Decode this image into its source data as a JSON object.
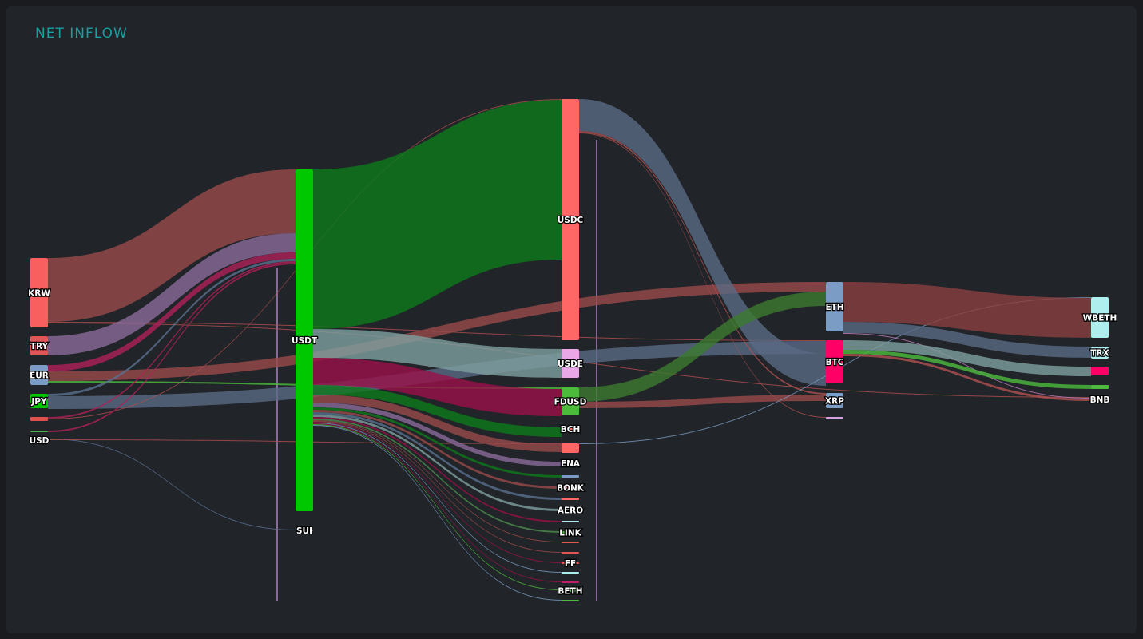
{
  "title": "NET INFLOW",
  "chart_data": {
    "type": "sankey",
    "title": "NET INFLOW",
    "nodes": [
      {
        "name": "KRW",
        "color": "#f86060"
      },
      {
        "name": "TRY",
        "color": "#e05555"
      },
      {
        "name": "EUR",
        "color": "#7b9cc4"
      },
      {
        "name": "JPY",
        "color": "#00c800"
      },
      {
        "name": "",
        "color": "#e05050"
      },
      {
        "name": "",
        "color": "#4caf50"
      },
      {
        "name": "USD",
        "color": "#7b9cc4"
      },
      {
        "name": "USDT",
        "color": "#00c800"
      },
      {
        "name": "SUI",
        "color": "#7b9cc4"
      },
      {
        "name": "USDC",
        "color": "#ff6666"
      },
      {
        "name": "USDE",
        "color": "#e8a8e8"
      },
      {
        "name": "FDUSD",
        "color": "#4cbb3c"
      },
      {
        "name": "BCH",
        "color": "#ff6666"
      },
      {
        "name": "",
        "color": "#ff6666"
      },
      {
        "name": "ENA",
        "color": "#b088c8"
      },
      {
        "name": "",
        "color": "#7b9cc4"
      },
      {
        "name": "BONK",
        "color": "#ff6666"
      },
      {
        "name": "",
        "color": "#ff6666"
      },
      {
        "name": "AERO",
        "color": "#9ab0b0"
      },
      {
        "name": "",
        "color": "#aeeeee"
      },
      {
        "name": "LINK",
        "color": "#4cbb3c"
      },
      {
        "name": "",
        "color": "#e05555"
      },
      {
        "name": "",
        "color": "#e05555"
      },
      {
        "name": "FF",
        "color": "#e05555"
      },
      {
        "name": "",
        "color": "#aeeeee"
      },
      {
        "name": "",
        "color": "#c0206a"
      },
      {
        "name": "BETH",
        "color": "#4cbb3c"
      },
      {
        "name": "",
        "color": "#4cbb3c"
      },
      {
        "name": "ETH",
        "color": "#7b9cc4"
      },
      {
        "name": "BTC",
        "color": "#ff0066"
      },
      {
        "name": "XRP",
        "color": "#7b9cc4"
      },
      {
        "name": "",
        "color": "#d8a0d8"
      },
      {
        "name": "WBETH",
        "color": "#aeeeee"
      },
      {
        "name": "TRX",
        "color": "#aeeeee"
      },
      {
        "name": "",
        "color": "#ff0066"
      },
      {
        "name": "",
        "color": "#4cbb3c"
      },
      {
        "name": "BNB",
        "color": "#00c800"
      }
    ],
    "links": [
      [
        0,
        7,
        80,
        "#9a4a4a"
      ],
      [
        0,
        29,
        1,
        "#b05050"
      ],
      [
        0,
        36,
        1,
        "#b05050"
      ],
      [
        1,
        7,
        24,
        "#8a6a9a"
      ],
      [
        2,
        7,
        8,
        "#b0205a"
      ],
      [
        2,
        28,
        12,
        "#9a4a4a"
      ],
      [
        2,
        11,
        2,
        "#4cbb3c"
      ],
      [
        3,
        7,
        3,
        "#5a7090"
      ],
      [
        3,
        29,
        16,
        "#5a6a85"
      ],
      [
        4,
        7,
        2,
        "#b0205a"
      ],
      [
        4,
        9,
        1,
        "#b05050"
      ],
      [
        5,
        7,
        2,
        "#b0205a"
      ],
      [
        6,
        8,
        1,
        "#5a7090"
      ],
      [
        6,
        13,
        1,
        "#b05050"
      ],
      [
        7,
        9,
        200,
        "#0e7a1c"
      ],
      [
        7,
        10,
        36,
        "#7fa0a0"
      ],
      [
        7,
        11,
        34,
        "#9a1048"
      ],
      [
        7,
        12,
        12,
        "#0e7a1c"
      ],
      [
        7,
        13,
        10,
        "#9a4a4a"
      ],
      [
        7,
        14,
        6,
        "#8a6a9a"
      ],
      [
        7,
        15,
        3,
        "#0e7a1c"
      ],
      [
        7,
        16,
        3,
        "#9a4a4a"
      ],
      [
        7,
        17,
        3,
        "#5a7090"
      ],
      [
        7,
        18,
        3,
        "#7fa0a0"
      ],
      [
        7,
        19,
        2,
        "#9a1048"
      ],
      [
        7,
        20,
        2,
        "#4c8c4c"
      ],
      [
        7,
        21,
        1,
        "#9a4a4a"
      ],
      [
        7,
        22,
        1,
        "#9a4a4a"
      ],
      [
        7,
        23,
        1,
        "#9a1048"
      ],
      [
        7,
        24,
        1,
        "#7b9cc4"
      ],
      [
        7,
        25,
        1,
        "#9a1048"
      ],
      [
        7,
        26,
        1,
        "#4cbb3c"
      ],
      [
        7,
        27,
        1,
        "#7b9cc4"
      ],
      [
        9,
        29,
        40,
        "#5a6a85"
      ],
      [
        9,
        30,
        2,
        "#b05050"
      ],
      [
        9,
        31,
        1,
        "#b05050"
      ],
      [
        11,
        28,
        18,
        "#3d7a2f"
      ],
      [
        11,
        30,
        8,
        "#9a4a4a"
      ],
      [
        13,
        32,
        1,
        "#7b9cc4"
      ],
      [
        28,
        32,
        50,
        "#8a4040"
      ],
      [
        28,
        33,
        14,
        "#5a6a85"
      ],
      [
        28,
        36,
        1,
        "#c080c0"
      ],
      [
        29,
        34,
        12,
        "#7fa0a0"
      ],
      [
        29,
        35,
        5,
        "#4cbb3c"
      ],
      [
        29,
        36,
        3,
        "#b05050"
      ]
    ]
  }
}
